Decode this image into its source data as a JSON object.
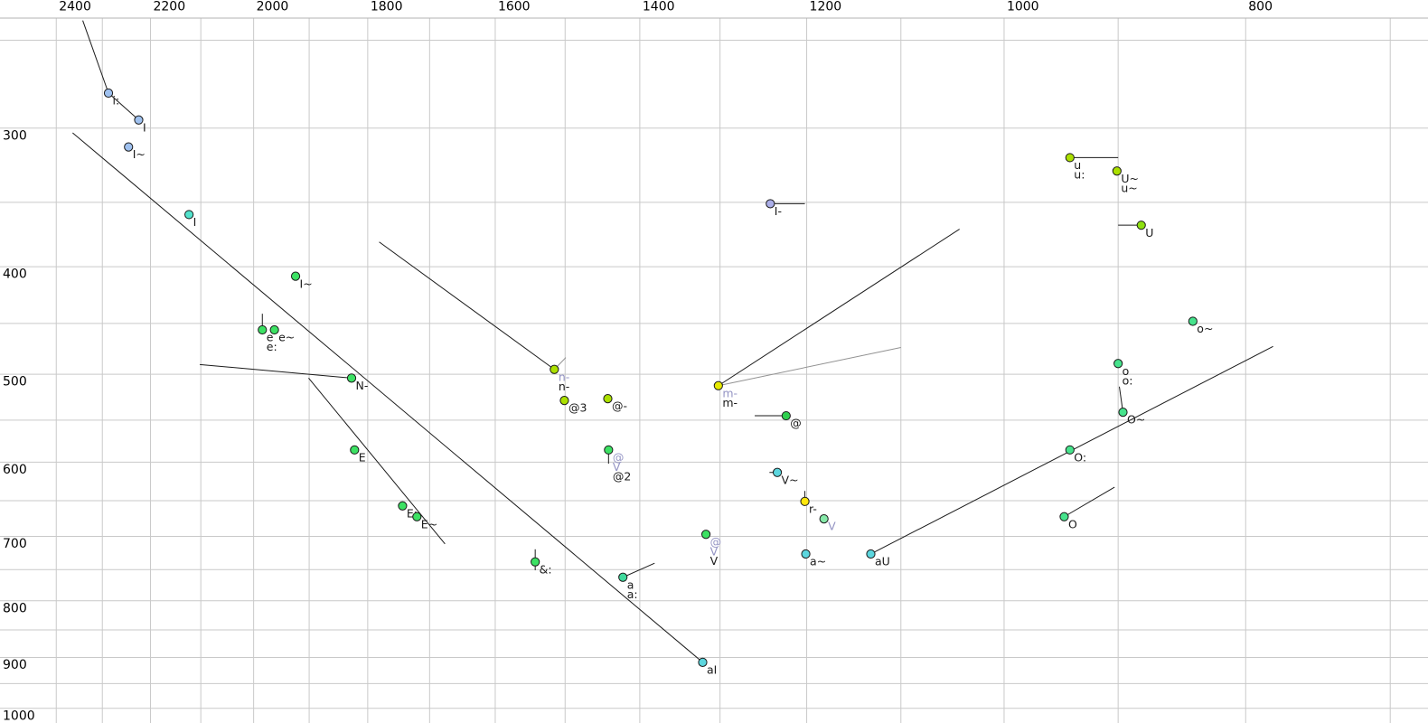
{
  "chart_data": {
    "type": "scatter",
    "title": "",
    "xlabel": "",
    "ylabel": "",
    "background": "#ffffff",
    "grid_color": "#c9c9c9",
    "frame_color": "#b3b3b3",
    "black_line_color": "#1a1a1a",
    "grey_line_color": "#929292",
    "black_label_color": "#1a1a1a",
    "grey_label_color": "#9494c4",
    "tick_label_color": "#000000",
    "x_axis": {
      "scale": "log-reversed",
      "tick_labels": [
        2400,
        2200,
        2000,
        1800,
        1600,
        1400,
        1200,
        1000,
        800
      ],
      "grid_min": 700,
      "grid_max": 2400,
      "grid_step": 100,
      "value_at_left_edge": 2528,
      "value_at_right_edge": 676
    },
    "y_axis": {
      "scale": "log-increasing-down",
      "tick_labels": [
        300,
        400,
        500,
        600,
        700,
        800,
        900,
        1000
      ],
      "grid_min": 250,
      "grid_max": 1000,
      "grid_step": 50,
      "value_at_top_edge": 230,
      "value_at_bottom_edge": 1031
    },
    "marker_colors": {
      "blue": "#9fc1ef",
      "violet": "#abaee8",
      "turquoise": "#52e2cc",
      "cyan": "#5cd6de",
      "teal": "#3fd99c",
      "green": "#3ce163",
      "green2": "#46e38c",
      "brightgreen": "#2ed04e",
      "lightgreen": "#86e9a9",
      "yellowgreen": "#abe000",
      "yellowgreen2": "#8ee010",
      "yellow": "#e6e900",
      "brightyellow": "#ffe70c"
    },
    "points": [
      {
        "id": "i-long",
        "f2": 2287,
        "f1": 279,
        "color": "blue",
        "labels": [
          {
            "text": "i:",
            "shade": "black"
          }
        ]
      },
      {
        "id": "i-cap-blue",
        "f2": 2224,
        "f1": 295,
        "color": "blue",
        "labels": [
          {
            "text": "I",
            "shade": "black"
          }
        ]
      },
      {
        "id": "i-nasal-blue",
        "f2": 2245,
        "f1": 312,
        "color": "blue",
        "labels": [
          {
            "text": "I~",
            "shade": "black"
          }
        ]
      },
      {
        "id": "i-cap-cyan",
        "f2": 2123,
        "f1": 359,
        "color": "turquoise",
        "labels": [
          {
            "text": "I",
            "shade": "black"
          }
        ]
      },
      {
        "id": "i-nasal-green",
        "f2": 1924,
        "f1": 408,
        "color": "green",
        "labels": [
          {
            "text": "I~",
            "shade": "black"
          }
        ]
      },
      {
        "id": "e",
        "f2": 1984,
        "f1": 456,
        "color": "green",
        "labels": [
          {
            "text": "e",
            "shade": "black"
          },
          {
            "text": "e:",
            "shade": "black"
          }
        ]
      },
      {
        "id": "e-nasal",
        "f2": 1962,
        "f1": 456,
        "color": "green",
        "labels": [
          {
            "text": "e~",
            "shade": "black"
          }
        ]
      },
      {
        "id": "n-velar",
        "f2": 1827,
        "f1": 504,
        "color": "green",
        "labels": [
          {
            "text": "N-",
            "shade": "black"
          }
        ]
      },
      {
        "id": "e-open",
        "f2": 1822,
        "f1": 585,
        "color": "green",
        "labels": [
          {
            "text": "E",
            "shade": "black"
          }
        ]
      },
      {
        "id": "e-open-long",
        "f2": 1743,
        "f1": 657,
        "color": "green",
        "labels": [
          {
            "text": "E:",
            "shade": "black"
          }
        ]
      },
      {
        "id": "e-open-nasal",
        "f2": 1720,
        "f1": 672,
        "color": "green",
        "labels": [
          {
            "text": "E~",
            "shade": "black"
          }
        ]
      },
      {
        "id": "ae-long",
        "f2": 1542,
        "f1": 738,
        "color": "green",
        "labels": [
          {
            "text": "&:",
            "shade": "black"
          }
        ]
      },
      {
        "id": "n-syllabic",
        "f2": 1515,
        "f1": 495,
        "color": "yellowgreen",
        "labels": [
          {
            "text": "n-",
            "shade": "grey"
          },
          {
            "text": "n-",
            "shade": "black"
          }
        ]
      },
      {
        "id": "schwa-3",
        "f2": 1501,
        "f1": 528,
        "color": "yellowgreen",
        "labels": [
          {
            "text": "@3",
            "shade": "black"
          }
        ]
      },
      {
        "id": "schwa-dash",
        "f2": 1442,
        "f1": 526,
        "color": "yellowgreen",
        "labels": [
          {
            "text": "@-",
            "shade": "black"
          }
        ]
      },
      {
        "id": "schwa-2",
        "f2": 1441,
        "f1": 585,
        "color": "green",
        "labels": [
          {
            "text": "@",
            "shade": "grey"
          },
          {
            "text": "V",
            "shade": "grey"
          },
          {
            "text": "@2",
            "shade": "black"
          }
        ]
      },
      {
        "id": "a",
        "f2": 1422,
        "f1": 762,
        "color": "teal",
        "labels": [
          {
            "text": "a",
            "shade": "black"
          },
          {
            "text": "a:",
            "shade": "black"
          }
        ]
      },
      {
        "id": "a-i",
        "f2": 1321,
        "f1": 909,
        "color": "cyan",
        "labels": [
          {
            "text": "aI",
            "shade": "black"
          }
        ]
      },
      {
        "id": "v-turned",
        "f2": 1317,
        "f1": 697,
        "color": "green",
        "labels": [
          {
            "text": "@",
            "shade": "grey"
          },
          {
            "text": "V",
            "shade": "grey"
          },
          {
            "text": "V",
            "shade": "black"
          }
        ]
      },
      {
        "id": "m-syllabic",
        "f2": 1302,
        "f1": 512,
        "color": "yellow",
        "labels": [
          {
            "text": "m-",
            "shade": "grey"
          },
          {
            "text": "m-",
            "shade": "black"
          }
        ]
      },
      {
        "id": "i-bar",
        "f2": 1241,
        "f1": 351,
        "color": "violet",
        "labels": [
          {
            "text": "I-",
            "shade": "black"
          }
        ]
      },
      {
        "id": "schwa",
        "f2": 1223,
        "f1": 545,
        "color": "brightgreen",
        "labels": [
          {
            "text": "@",
            "shade": "black"
          }
        ]
      },
      {
        "id": "v-nasal",
        "f2": 1233,
        "f1": 613,
        "color": "cyan",
        "labels": [
          {
            "text": "V~",
            "shade": "black"
          }
        ]
      },
      {
        "id": "r-syllabic",
        "f2": 1202,
        "f1": 651,
        "color": "brightyellow",
        "labels": [
          {
            "text": "r-",
            "shade": "black"
          }
        ]
      },
      {
        "id": "v-grey",
        "f2": 1181,
        "f1": 675,
        "color": "lightgreen",
        "labels": [
          {
            "text": "V",
            "shade": "grey"
          }
        ]
      },
      {
        "id": "a-nasal",
        "f2": 1201,
        "f1": 726,
        "color": "cyan",
        "labels": [
          {
            "text": "a~",
            "shade": "black"
          }
        ]
      },
      {
        "id": "a-u",
        "f2": 1131,
        "f1": 726,
        "color": "cyan",
        "labels": [
          {
            "text": "aU",
            "shade": "black"
          }
        ]
      },
      {
        "id": "u-long",
        "f2": 941,
        "f1": 319,
        "color": "yellowgreen",
        "labels": [
          {
            "text": "u",
            "shade": "black"
          },
          {
            "text": "u:",
            "shade": "black"
          }
        ]
      },
      {
        "id": "u-cap-nasal",
        "f2": 901,
        "f1": 328,
        "color": "yellowgreen",
        "labels": [
          {
            "text": "U~",
            "shade": "black"
          },
          {
            "text": "u~",
            "shade": "black"
          }
        ]
      },
      {
        "id": "u-cap",
        "f2": 881,
        "f1": 367,
        "color": "yellowgreen2",
        "labels": [
          {
            "text": "U",
            "shade": "black"
          }
        ]
      },
      {
        "id": "o-nasal",
        "f2": 840,
        "f1": 448,
        "color": "green2",
        "labels": [
          {
            "text": "o~",
            "shade": "black"
          }
        ]
      },
      {
        "id": "o-long",
        "f2": 900,
        "f1": 489,
        "color": "green2",
        "labels": [
          {
            "text": "o",
            "shade": "black"
          },
          {
            "text": "o:",
            "shade": "black"
          }
        ]
      },
      {
        "id": "o-open-nasal",
        "f2": 896,
        "f1": 541,
        "color": "green2",
        "labels": [
          {
            "text": "O~",
            "shade": "black"
          }
        ]
      },
      {
        "id": "o-open-long",
        "f2": 941,
        "f1": 585,
        "color": "green2",
        "labels": [
          {
            "text": "O:",
            "shade": "black"
          }
        ]
      },
      {
        "id": "o-open",
        "f2": 946,
        "f1": 672,
        "color": "green2",
        "labels": [
          {
            "text": "O",
            "shade": "black"
          }
        ]
      }
    ],
    "segments": [
      {
        "from": [
          2342,
          240
        ],
        "to": [
          2287,
          279
        ],
        "shade": "black"
      },
      {
        "from": [
          2287,
          279
        ],
        "to": [
          2224,
          295
        ],
        "shade": "black"
      },
      {
        "from": [
          2364,
          303
        ],
        "to": [
          1321,
          909
        ],
        "shade": "black"
      },
      {
        "from": [
          1781,
          380
        ],
        "to": [
          1515,
          495
        ],
        "shade": "black"
      },
      {
        "from": [
          2102,
          490
        ],
        "to": [
          1827,
          504
        ],
        "shade": "black"
      },
      {
        "from": [
          1901,
          504
        ],
        "to": [
          1676,
          711
        ],
        "shade": "black"
      },
      {
        "from": [
          1984,
          441
        ],
        "to": [
          1984,
          456
        ],
        "shade": "black"
      },
      {
        "from": [
          1515,
          495
        ],
        "to": [
          1499,
          483
        ],
        "shade": "grey"
      },
      {
        "from": [
          1302,
          512
        ],
        "to": [
          1042,
          370
        ],
        "shade": "black"
      },
      {
        "from": [
          1302,
          512
        ],
        "to": [
          1100,
          473
        ],
        "shade": "grey"
      },
      {
        "from": [
          1241,
          351
        ],
        "to": [
          1202,
          351
        ],
        "shade": "black"
      },
      {
        "from": [
          1259,
          545
        ],
        "to": [
          1223,
          545
        ],
        "shade": "black"
      },
      {
        "from": [
          1242,
          613
        ],
        "to": [
          1233,
          613
        ],
        "shade": "black"
      },
      {
        "from": [
          1202,
          651
        ],
        "to": [
          1202,
          637
        ],
        "shade": "black"
      },
      {
        "from": [
          1441,
          585
        ],
        "to": [
          1441,
          602
        ],
        "shade": "black"
      },
      {
        "from": [
          1542,
          719
        ],
        "to": [
          1542,
          751
        ],
        "shade": "black"
      },
      {
        "from": [
          1422,
          762
        ],
        "to": [
          1381,
          740
        ],
        "shade": "black"
      },
      {
        "from": [
          1131,
          726
        ],
        "to": [
          780,
          472
        ],
        "shade": "black"
      },
      {
        "from": [
          946,
          672
        ],
        "to": [
          903,
          632
        ],
        "shade": "black"
      },
      {
        "from": [
          899,
          513
        ],
        "to": [
          896,
          541
        ],
        "shade": "black"
      },
      {
        "from": [
          941,
          319
        ],
        "to": [
          900,
          319
        ],
        "shade": "black"
      },
      {
        "from": [
          900,
          367
        ],
        "to": [
          881,
          367
        ],
        "shade": "black"
      }
    ]
  }
}
